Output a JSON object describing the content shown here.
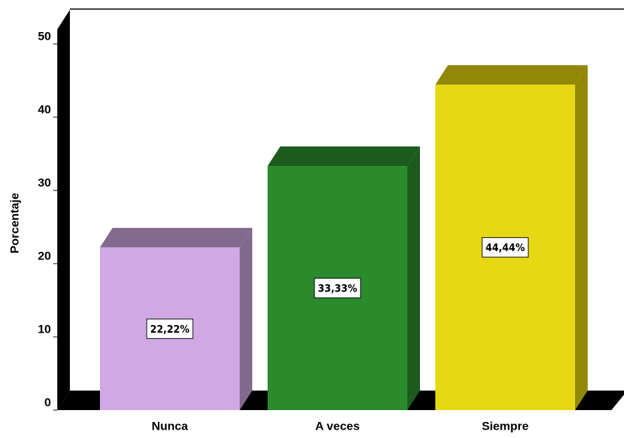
{
  "chart_data": {
    "type": "bar3d",
    "ylabel": "Porcentaje",
    "categories": [
      "Nunca",
      "A veces",
      "Siempre"
    ],
    "values": [
      22.22,
      33.33,
      44.44
    ],
    "value_labels": [
      "22,22%",
      "33,33%",
      "44,44%"
    ],
    "colors": [
      "#cfa8e4",
      "#2a8a2c",
      "#e6d813"
    ],
    "side_colors": [
      "#84698f",
      "#1c5a1e",
      "#918808"
    ],
    "ylim": [
      0,
      52
    ],
    "yticks": [
      0,
      10,
      20,
      30,
      40,
      50
    ],
    "grid": false
  }
}
